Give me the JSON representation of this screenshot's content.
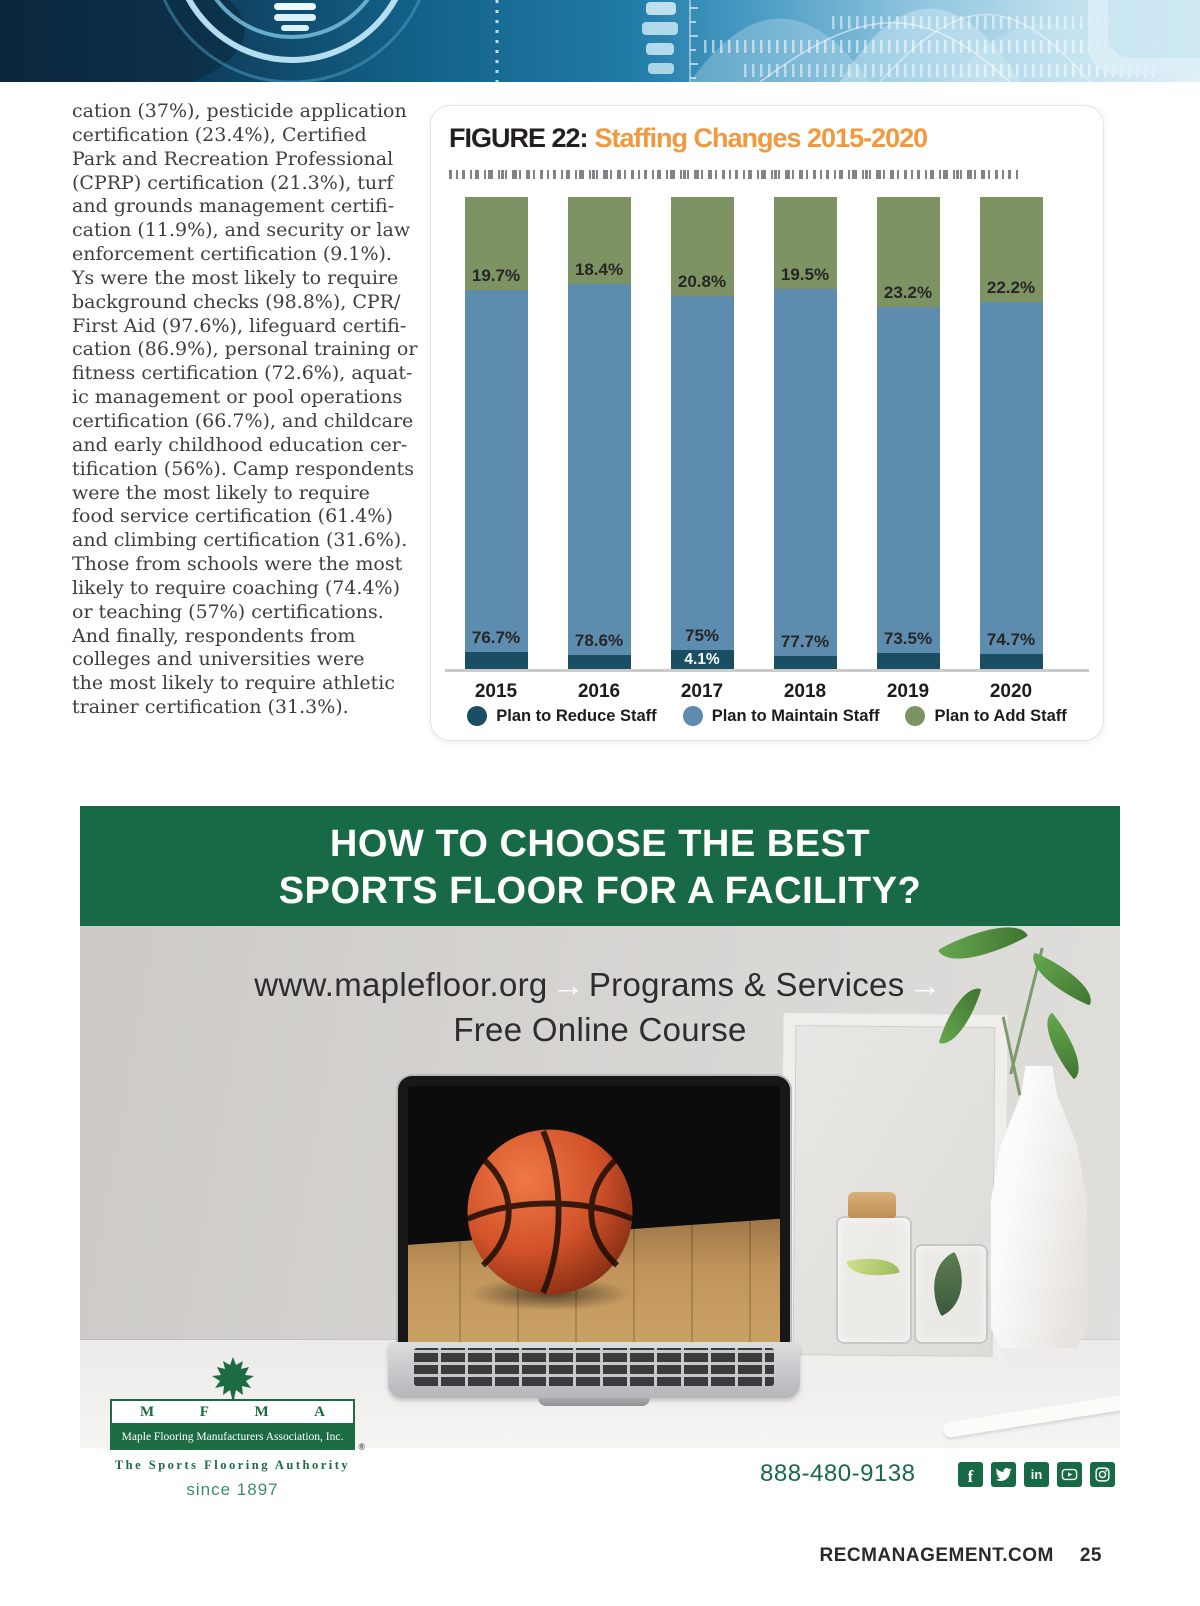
{
  "article": {
    "body_lines": [
      "cation (37%), pesticide application",
      "certification (23.4%), Certified",
      "Park and Recreation Professional",
      "(CPRP) certification (21.3%), turf",
      "and grounds management certifi-",
      "cation (11.9%), and security or law",
      "enforcement certification (9.1%).",
      "Ys were the most likely to require",
      "background checks (98.8%), CPR/",
      "First Aid (97.6%), lifeguard certifi-",
      "cation (86.9%), personal training or",
      "fitness certification (72.6%), aquat-",
      "ic management or pool operations",
      "certification (66.7%), and childcare",
      "and early childhood education cer-",
      "tification (56%). Camp respondents",
      "were the most likely to require",
      "food service certification (61.4%)",
      "and climbing certification (31.6%).",
      "Those from schools were the most",
      "likely to require coaching (74.4%)",
      "or teaching (57%) certifications.",
      "And finally, respondents from",
      "colleges and universities were",
      "the most likely to require athletic",
      "trainer certification (31.3%)."
    ]
  },
  "figure": {
    "label": "FIGURE 22:",
    "title": "Staffing Changes 2015-2020"
  },
  "chart_data": {
    "type": "bar",
    "stacked": true,
    "title": "FIGURE 22: Staffing Changes 2015-2020",
    "categories": [
      "2015",
      "2016",
      "2017",
      "2018",
      "2019",
      "2020"
    ],
    "series": [
      {
        "name": "Plan to Reduce Staff",
        "color": "#1a4e63",
        "values": [
          3.6,
          3.0,
          4.1,
          2.8,
          3.3,
          3.1
        ],
        "labels": [
          "",
          "",
          "4.1%",
          "",
          "",
          ""
        ]
      },
      {
        "name": "Plan to Maintain Staff",
        "color": "#5d8cae",
        "values": [
          76.7,
          78.6,
          75,
          77.7,
          73.5,
          74.7
        ],
        "labels": [
          "76.7%",
          "78.6%",
          "75%",
          "77.7%",
          "73.5%",
          "74.7%"
        ]
      },
      {
        "name": "Plan to Add Staff",
        "color": "#7e9364",
        "values": [
          19.7,
          18.4,
          20.8,
          19.5,
          23.2,
          22.2
        ],
        "labels": [
          "19.7%",
          "18.4%",
          "20.8%",
          "19.5%",
          "23.2%",
          "22.2%"
        ]
      }
    ],
    "ylim": [
      0,
      100
    ],
    "legend_position": "bottom",
    "grid": false
  },
  "ad": {
    "headline1": "HOW TO CHOOSE THE BEST",
    "headline2": "SPORTS FLOOR FOR A FACILITY?",
    "url1a": "www.maplefloor.org",
    "arrow": "→",
    "url1b": "Programs & Services",
    "url2": "Free Online Course",
    "logo": {
      "letters": [
        "M",
        "F",
        "M",
        "A"
      ],
      "org": "Maple Flooring Manufacturers Association, Inc.",
      "registered": "®",
      "tagline": "The Sports Flooring Authority",
      "since": "since 1897"
    },
    "phone": "888-480-9138",
    "social_icons": [
      "facebook-icon",
      "twitter-icon",
      "linkedin-icon",
      "youtube-icon",
      "instagram-icon"
    ]
  },
  "footer": {
    "site": "RECMANAGEMENT.COM",
    "page_number": "25"
  },
  "colors": {
    "accent_orange": "#f2983e",
    "reduce": "#1a4e63",
    "maintain": "#5d8cae",
    "add": "#7e9364",
    "ad_green": "#186945",
    "logo_green": "#1d6b43"
  }
}
